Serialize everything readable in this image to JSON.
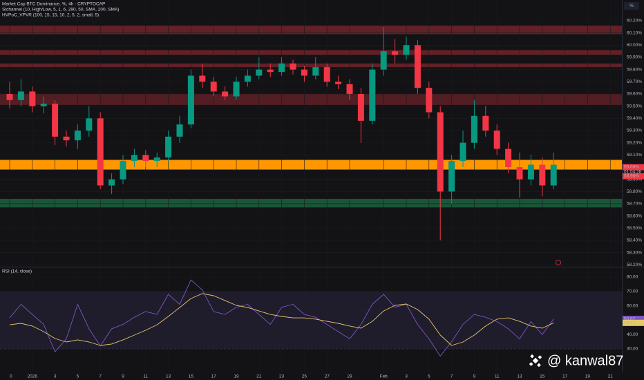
{
  "chart_data": {
    "type": "candlestick",
    "title": "Market Cap BTC Dominance, %, 4h · CRYPTOCAP",
    "indicators": [
      "Stchannel (10, High/Low, 5, 1, 6, 290, 50, SMA, 200, SMA)",
      "HVPoC_VPVR (100, 15, 15, 10, 2, 5, 2, small, 5)"
    ],
    "unit_button": "%",
    "categories": [
      "0",
      null,
      "2026",
      null,
      "3",
      null,
      "5",
      null,
      "7",
      null,
      "9",
      null,
      "11",
      null,
      "13",
      null,
      "15",
      null,
      "17",
      null,
      "19",
      null,
      "21",
      null,
      "23",
      null,
      "25",
      null,
      "27",
      null,
      "29",
      null,
      null,
      "Feb",
      null,
      "3",
      null,
      "5",
      null,
      "7",
      null,
      "9",
      null,
      "11",
      null,
      "13",
      null,
      "15",
      null,
      "17",
      null,
      "19",
      null,
      "21"
    ],
    "open": [
      59.6,
      59.55,
      59.62,
      59.5,
      59.52,
      59.25,
      59.22,
      59.3,
      59.4,
      58.85,
      58.9,
      59.05,
      59.1,
      59.05,
      59.08,
      59.25,
      59.35,
      59.75,
      59.7,
      59.62,
      59.58,
      59.7,
      59.75,
      59.8,
      59.78,
      59.85,
      59.8,
      59.75,
      59.82,
      59.7,
      59.68,
      59.6,
      59.38,
      59.8,
      59.95,
      59.92,
      60.0,
      59.65,
      59.45,
      58.8,
      59.05,
      59.2,
      59.42,
      59.3,
      59.15,
      59.0,
      58.9,
      59.02,
      58.85,
      null,
      null,
      null,
      null,
      null
    ],
    "high": [
      59.7,
      59.72,
      59.66,
      59.58,
      59.55,
      59.3,
      59.35,
      59.5,
      59.45,
      58.95,
      59.1,
      59.15,
      59.14,
      59.12,
      59.3,
      59.42,
      59.8,
      59.85,
      59.74,
      59.66,
      59.74,
      59.8,
      59.9,
      59.85,
      59.9,
      59.88,
      59.83,
      59.9,
      59.85,
      59.75,
      59.72,
      59.65,
      59.85,
      60.15,
      60.05,
      60.07,
      60.04,
      59.7,
      59.5,
      59.1,
      59.3,
      59.55,
      59.5,
      59.35,
      59.2,
      59.12,
      59.1,
      59.08,
      59.12,
      null,
      null,
      null,
      null,
      null
    ],
    "low": [
      59.48,
      59.5,
      59.45,
      59.44,
      59.18,
      59.17,
      59.15,
      59.25,
      58.82,
      58.78,
      58.86,
      59.0,
      59.0,
      59.0,
      59.05,
      59.2,
      59.32,
      59.65,
      59.58,
      59.55,
      59.55,
      59.66,
      59.72,
      59.74,
      59.75,
      59.76,
      59.7,
      59.72,
      59.66,
      59.64,
      59.55,
      59.2,
      59.35,
      59.75,
      59.85,
      59.88,
      59.6,
      59.4,
      58.4,
      58.7,
      59.0,
      59.15,
      59.25,
      59.1,
      58.95,
      58.75,
      58.85,
      58.76,
      58.82,
      null,
      null,
      null,
      null,
      null
    ],
    "close": [
      59.55,
      59.62,
      59.5,
      59.52,
      59.25,
      59.22,
      59.3,
      59.4,
      58.85,
      58.9,
      59.05,
      59.1,
      59.05,
      59.08,
      59.25,
      59.35,
      59.75,
      59.7,
      59.62,
      59.58,
      59.7,
      59.75,
      59.8,
      59.78,
      59.85,
      59.8,
      59.75,
      59.82,
      59.7,
      59.68,
      59.6,
      59.38,
      59.8,
      59.95,
      59.92,
      60.0,
      59.65,
      59.45,
      58.8,
      59.05,
      59.2,
      59.42,
      59.3,
      59.15,
      59.0,
      58.9,
      59.02,
      58.85,
      59.02,
      null,
      null,
      null,
      null,
      null
    ],
    "up_color": "#089981",
    "down_color": "#f23645",
    "ylim": [
      58.19,
      60.37
    ],
    "yticks": [
      {
        "value": 60.2,
        "label": "60.20%"
      },
      {
        "value": 60.1,
        "label": "60.10%"
      },
      {
        "value": 60.0,
        "label": "60.00%"
      },
      {
        "value": 59.9,
        "label": "59.90%"
      },
      {
        "value": 59.8,
        "label": "59.80%"
      },
      {
        "value": 59.7,
        "label": "59.70%"
      },
      {
        "value": 59.6,
        "label": "59.60%"
      },
      {
        "value": 59.5,
        "label": "59.50%"
      },
      {
        "value": 59.4,
        "label": "59.40%"
      },
      {
        "value": 59.3,
        "label": "59.30%"
      },
      {
        "value": 59.2,
        "label": "59.20%"
      },
      {
        "value": 59.1,
        "label": "59.10%"
      },
      {
        "value": 58.9,
        "label": "58.90%"
      },
      {
        "value": 58.8,
        "label": "58.80%"
      },
      {
        "value": 58.7,
        "label": "58.70%"
      },
      {
        "value": 58.6,
        "label": "58.60%"
      },
      {
        "value": 58.5,
        "label": "58.50%"
      },
      {
        "value": 58.4,
        "label": "58.40%"
      },
      {
        "value": 58.3,
        "label": "58.30%"
      },
      {
        "value": 58.2,
        "label": "58.20%"
      }
    ],
    "zones": [
      {
        "lo": 60.09,
        "hi": 60.16,
        "color": "#6b2229"
      },
      {
        "lo": 59.92,
        "hi": 59.96,
        "color": "#6b2229"
      },
      {
        "lo": 59.82,
        "hi": 59.85,
        "color": "#6b2229"
      },
      {
        "lo": 59.51,
        "hi": 59.6,
        "color": "#5a1f25"
      },
      {
        "lo": 58.98,
        "hi": 59.06,
        "color": "#ff9800"
      },
      {
        "lo": 58.67,
        "hi": 58.74,
        "color": "#1b5e3b"
      }
    ],
    "price_tags": [
      {
        "value": 59.0,
        "label": "59.00%",
        "color": "#f23645"
      },
      {
        "value": 58.96,
        "label": "58.96%",
        "color": "#f23645"
      }
    ],
    "countdown": "01:04:28",
    "rsi": {
      "title": "RSI (14, close)",
      "ylim": [
        17.5,
        86.25
      ],
      "yticks": [
        {
          "value": 80,
          "label": "80.00"
        },
        {
          "value": 70,
          "label": "70.00"
        },
        {
          "value": 60,
          "label": "60.00"
        },
        {
          "value": 40,
          "label": "40.00"
        },
        {
          "value": 30,
          "label": "30.00"
        }
      ],
      "band": [
        30,
        70
      ],
      "band_color": "#2a2440",
      "values": [
        51.6,
        61,
        54,
        47,
        28,
        37,
        61,
        44,
        32,
        44,
        47,
        52,
        56,
        54,
        68,
        61,
        78,
        71,
        56,
        54,
        59,
        61,
        54,
        47,
        59,
        61,
        54,
        52,
        47,
        42,
        37,
        47,
        61,
        68,
        59,
        61,
        47,
        37,
        25,
        35,
        47,
        54,
        52,
        49,
        44,
        37,
        49,
        40,
        50.87,
        null,
        null,
        null,
        null,
        null
      ],
      "color": "#7e57c2",
      "last_label": "50.87",
      "ma_values": [
        46.8,
        47.8,
        45.9,
        42.0,
        37.2,
        34.8,
        36.3,
        34.8,
        32.4,
        33.4,
        36.3,
        39.6,
        43.0,
        46.8,
        52.6,
        58.8,
        65.1,
        68.5,
        67.0,
        63.7,
        60.3,
        58.8,
        56.4,
        54.0,
        52.6,
        51.6,
        51.6,
        50.7,
        49.2,
        47.8,
        45.9,
        44.4,
        49.2,
        56.4,
        60.3,
        61.3,
        57.4,
        50.7,
        39.6,
        32.4,
        34.8,
        39.6,
        45.9,
        50.7,
        51.6,
        49.2,
        45.9,
        44.4,
        48.12,
        null,
        null,
        null,
        null,
        null
      ],
      "ma_color": "#e8c96a",
      "ma_last_label": "48.12"
    },
    "watermark": "@ kanwal87"
  }
}
